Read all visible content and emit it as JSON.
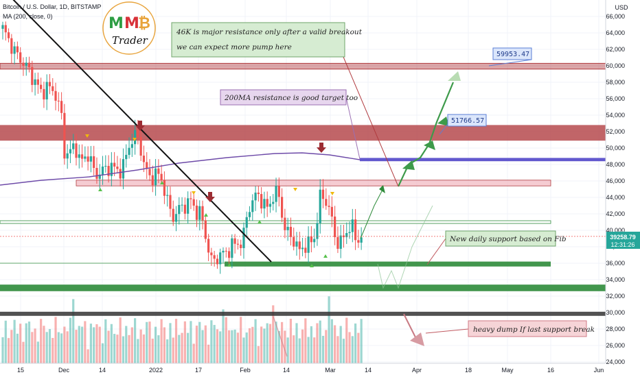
{
  "header": {
    "symbol": "Bitcoin / U.S. Dollar, 1D, BITSTAMP",
    "indicator": "MA (200, close, 0)"
  },
  "logo": {
    "letters": [
      "M",
      "M",
      "₿"
    ],
    "sub": "Trader"
  },
  "price_axis": {
    "currency": "USD",
    "last_price": "39258.79",
    "countdown": "12:31:26"
  },
  "annotations": {
    "resistance_note": [
      "46K is major resistance only after a valid breakout",
      "we can expect more pump here"
    ],
    "ma_note": "200MA resistance is good target too",
    "support_note": "New daily support based on Fib",
    "dump_note": "heavy dump If last support break",
    "target1": "59953.47",
    "target2": "51766.57"
  },
  "colors": {
    "up": "#26a69a",
    "down": "#ef5350",
    "ma": "#6d4aa8",
    "zone_red": "#b03a3e",
    "zone_green": "#2e8b3a",
    "zone_pink": "#f1b7bf"
  },
  "chart_data": {
    "type": "candlestick",
    "title": "Bitcoin / U.S. Dollar, 1D, BITSTAMP",
    "y_unit": "USD",
    "ylim": [
      24000,
      66000
    ],
    "y_ticks": [
      24000,
      26000,
      28000,
      30000,
      32000,
      34000,
      36000,
      38000,
      40000,
      42000,
      44000,
      46000,
      48000,
      50000,
      52000,
      54000,
      56000,
      58000,
      60000,
      62000,
      64000,
      66000
    ],
    "x_ticks": [
      "15",
      "Dec",
      "14",
      "2022",
      "17",
      "Feb",
      "14",
      "Mar",
      "14",
      "Apr",
      "18",
      "May",
      "16",
      "Jun"
    ],
    "candles_period": [
      "2021-11-11",
      "2022-03-13"
    ],
    "ma200": [
      [
        "2021-11-11",
        46100
      ],
      [
        "2021-12-15",
        46700
      ],
      [
        "2022-01-15",
        48200
      ],
      [
        "2022-02-10",
        49300
      ],
      [
        "2022-03-13",
        48600
      ]
    ],
    "last_close": 39258.79,
    "zones": [
      {
        "type": "resistance",
        "low": 59600,
        "high": 60300,
        "color": "red"
      },
      {
        "type": "resistance",
        "low": 50900,
        "high": 52800,
        "color": "red"
      },
      {
        "type": "ma_target",
        "low": 48400,
        "high": 48800,
        "color": "purple"
      },
      {
        "type": "resistance",
        "low": 45400,
        "high": 46100,
        "color": "pink"
      },
      {
        "type": "level",
        "value": 41000,
        "color": "green"
      },
      {
        "type": "support",
        "low": 35600,
        "high": 36200,
        "color": "green"
      },
      {
        "type": "support",
        "low": 32600,
        "high": 33400,
        "color": "green"
      },
      {
        "type": "support",
        "low": 29600,
        "high": 30100,
        "color": "black"
      }
    ],
    "grid": true
  }
}
